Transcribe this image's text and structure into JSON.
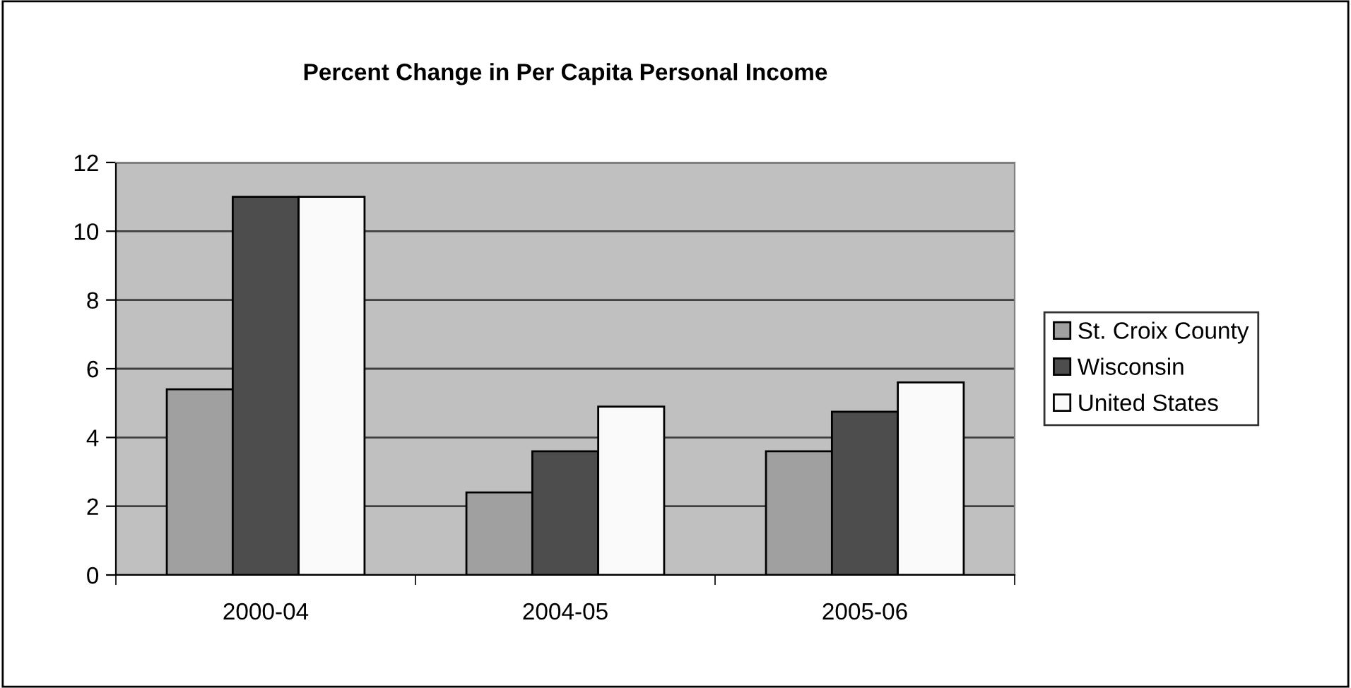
{
  "chart_data": {
    "type": "bar",
    "title": "Percent Change in Per Capita Personal Income",
    "categories": [
      "2000-04",
      "2004-05",
      "2005-06"
    ],
    "series": [
      {
        "name": "St. Croix County",
        "color": "#a0a0a0",
        "values": [
          5.4,
          2.4,
          3.6
        ]
      },
      {
        "name": "Wisconsin",
        "color": "#4d4d4d",
        "values": [
          11.0,
          3.6,
          4.75
        ]
      },
      {
        "name": "United States",
        "color": "#fafafa",
        "values": [
          11.0,
          4.9,
          5.6
        ]
      }
    ],
    "ylim": [
      0,
      12
    ],
    "yticks": [
      0,
      2,
      4,
      6,
      8,
      10,
      12
    ],
    "grid": "y",
    "legend": "right"
  }
}
